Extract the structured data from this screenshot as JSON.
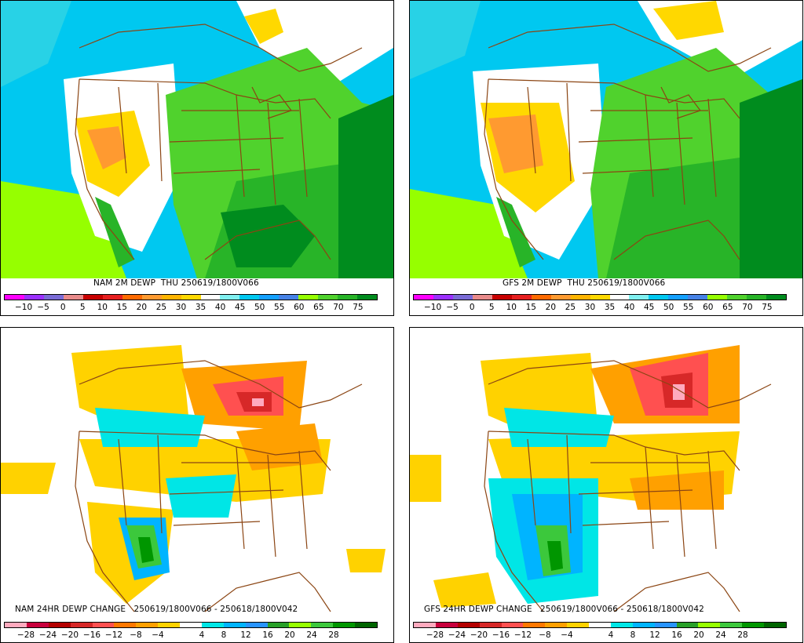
{
  "panels": [
    {
      "id": "nam-dewp",
      "caption": "NAM 2M DEWP  THU 250619/1800V066",
      "colorbar_colors": [
        "#ff00ff",
        "#9b30ff",
        "#7a6bd6",
        "#e88a8a",
        "#c80000",
        "#e62020",
        "#ff6a00",
        "#ff9a30",
        "#ffb400",
        "#ffd800",
        "#ffffff",
        "#80f0f0",
        "#00c8f0",
        "#14a0ff",
        "#4682e6",
        "#96ff00",
        "#50d22d",
        "#28b428",
        "#008c1e"
      ],
      "ticks": [
        "−10",
        "−5",
        "0",
        "5",
        "10",
        "15",
        "20",
        "25",
        "30",
        "35",
        "40",
        "45",
        "50",
        "55",
        "60",
        "65",
        "70",
        "75"
      ]
    },
    {
      "id": "gfs-dewp",
      "caption": "GFS 2M DEWP  THU 250619/1800V066",
      "colorbar_colors": [
        "#ff00ff",
        "#9b30ff",
        "#7a6bd6",
        "#e88a8a",
        "#c80000",
        "#e62020",
        "#ff6a00",
        "#ff9a30",
        "#ffb400",
        "#ffd800",
        "#ffffff",
        "#80f0f0",
        "#00c8f0",
        "#14a0ff",
        "#4682e6",
        "#96ff00",
        "#50d22d",
        "#28b428",
        "#008c1e"
      ],
      "ticks": [
        "−10",
        "−5",
        "0",
        "5",
        "10",
        "15",
        "20",
        "25",
        "30",
        "35",
        "40",
        "45",
        "50",
        "55",
        "60",
        "65",
        "70",
        "75"
      ]
    },
    {
      "id": "nam-change",
      "caption": "NAM 24HR DEWP CHANGE   250619/1800V066 - 250618/1800V042",
      "colorbar_colors": [
        "#ffaabe",
        "#c8003c",
        "#b40000",
        "#d72828",
        "#ff5050",
        "#ff7800",
        "#ffa000",
        "#ffd200",
        "#ffffff",
        "#00e6e6",
        "#00b4ff",
        "#2894ff",
        "#28a028",
        "#96ff00",
        "#3cc83c",
        "#009600",
        "#006400"
      ],
      "ticks": [
        "−28",
        "−24",
        "−20",
        "−16",
        "−12",
        "−8",
        "−4",
        "4",
        "8",
        "12",
        "16",
        "20",
        "24",
        "28"
      ]
    },
    {
      "id": "gfs-change",
      "caption": "GFS 24HR DEWP CHANGE   250619/1800V066 - 250618/1800V042",
      "colorbar_colors": [
        "#ffaabe",
        "#c8003c",
        "#b40000",
        "#d72828",
        "#ff5050",
        "#ff7800",
        "#ffa000",
        "#ffd200",
        "#ffffff",
        "#00e6e6",
        "#00b4ff",
        "#2894ff",
        "#28a028",
        "#96ff00",
        "#3cc83c",
        "#009600",
        "#006400"
      ],
      "ticks": [
        "−28",
        "−24",
        "−20",
        "−16",
        "−12",
        "−8",
        "−4",
        "4",
        "8",
        "12",
        "16",
        "20",
        "24",
        "28"
      ]
    }
  ]
}
